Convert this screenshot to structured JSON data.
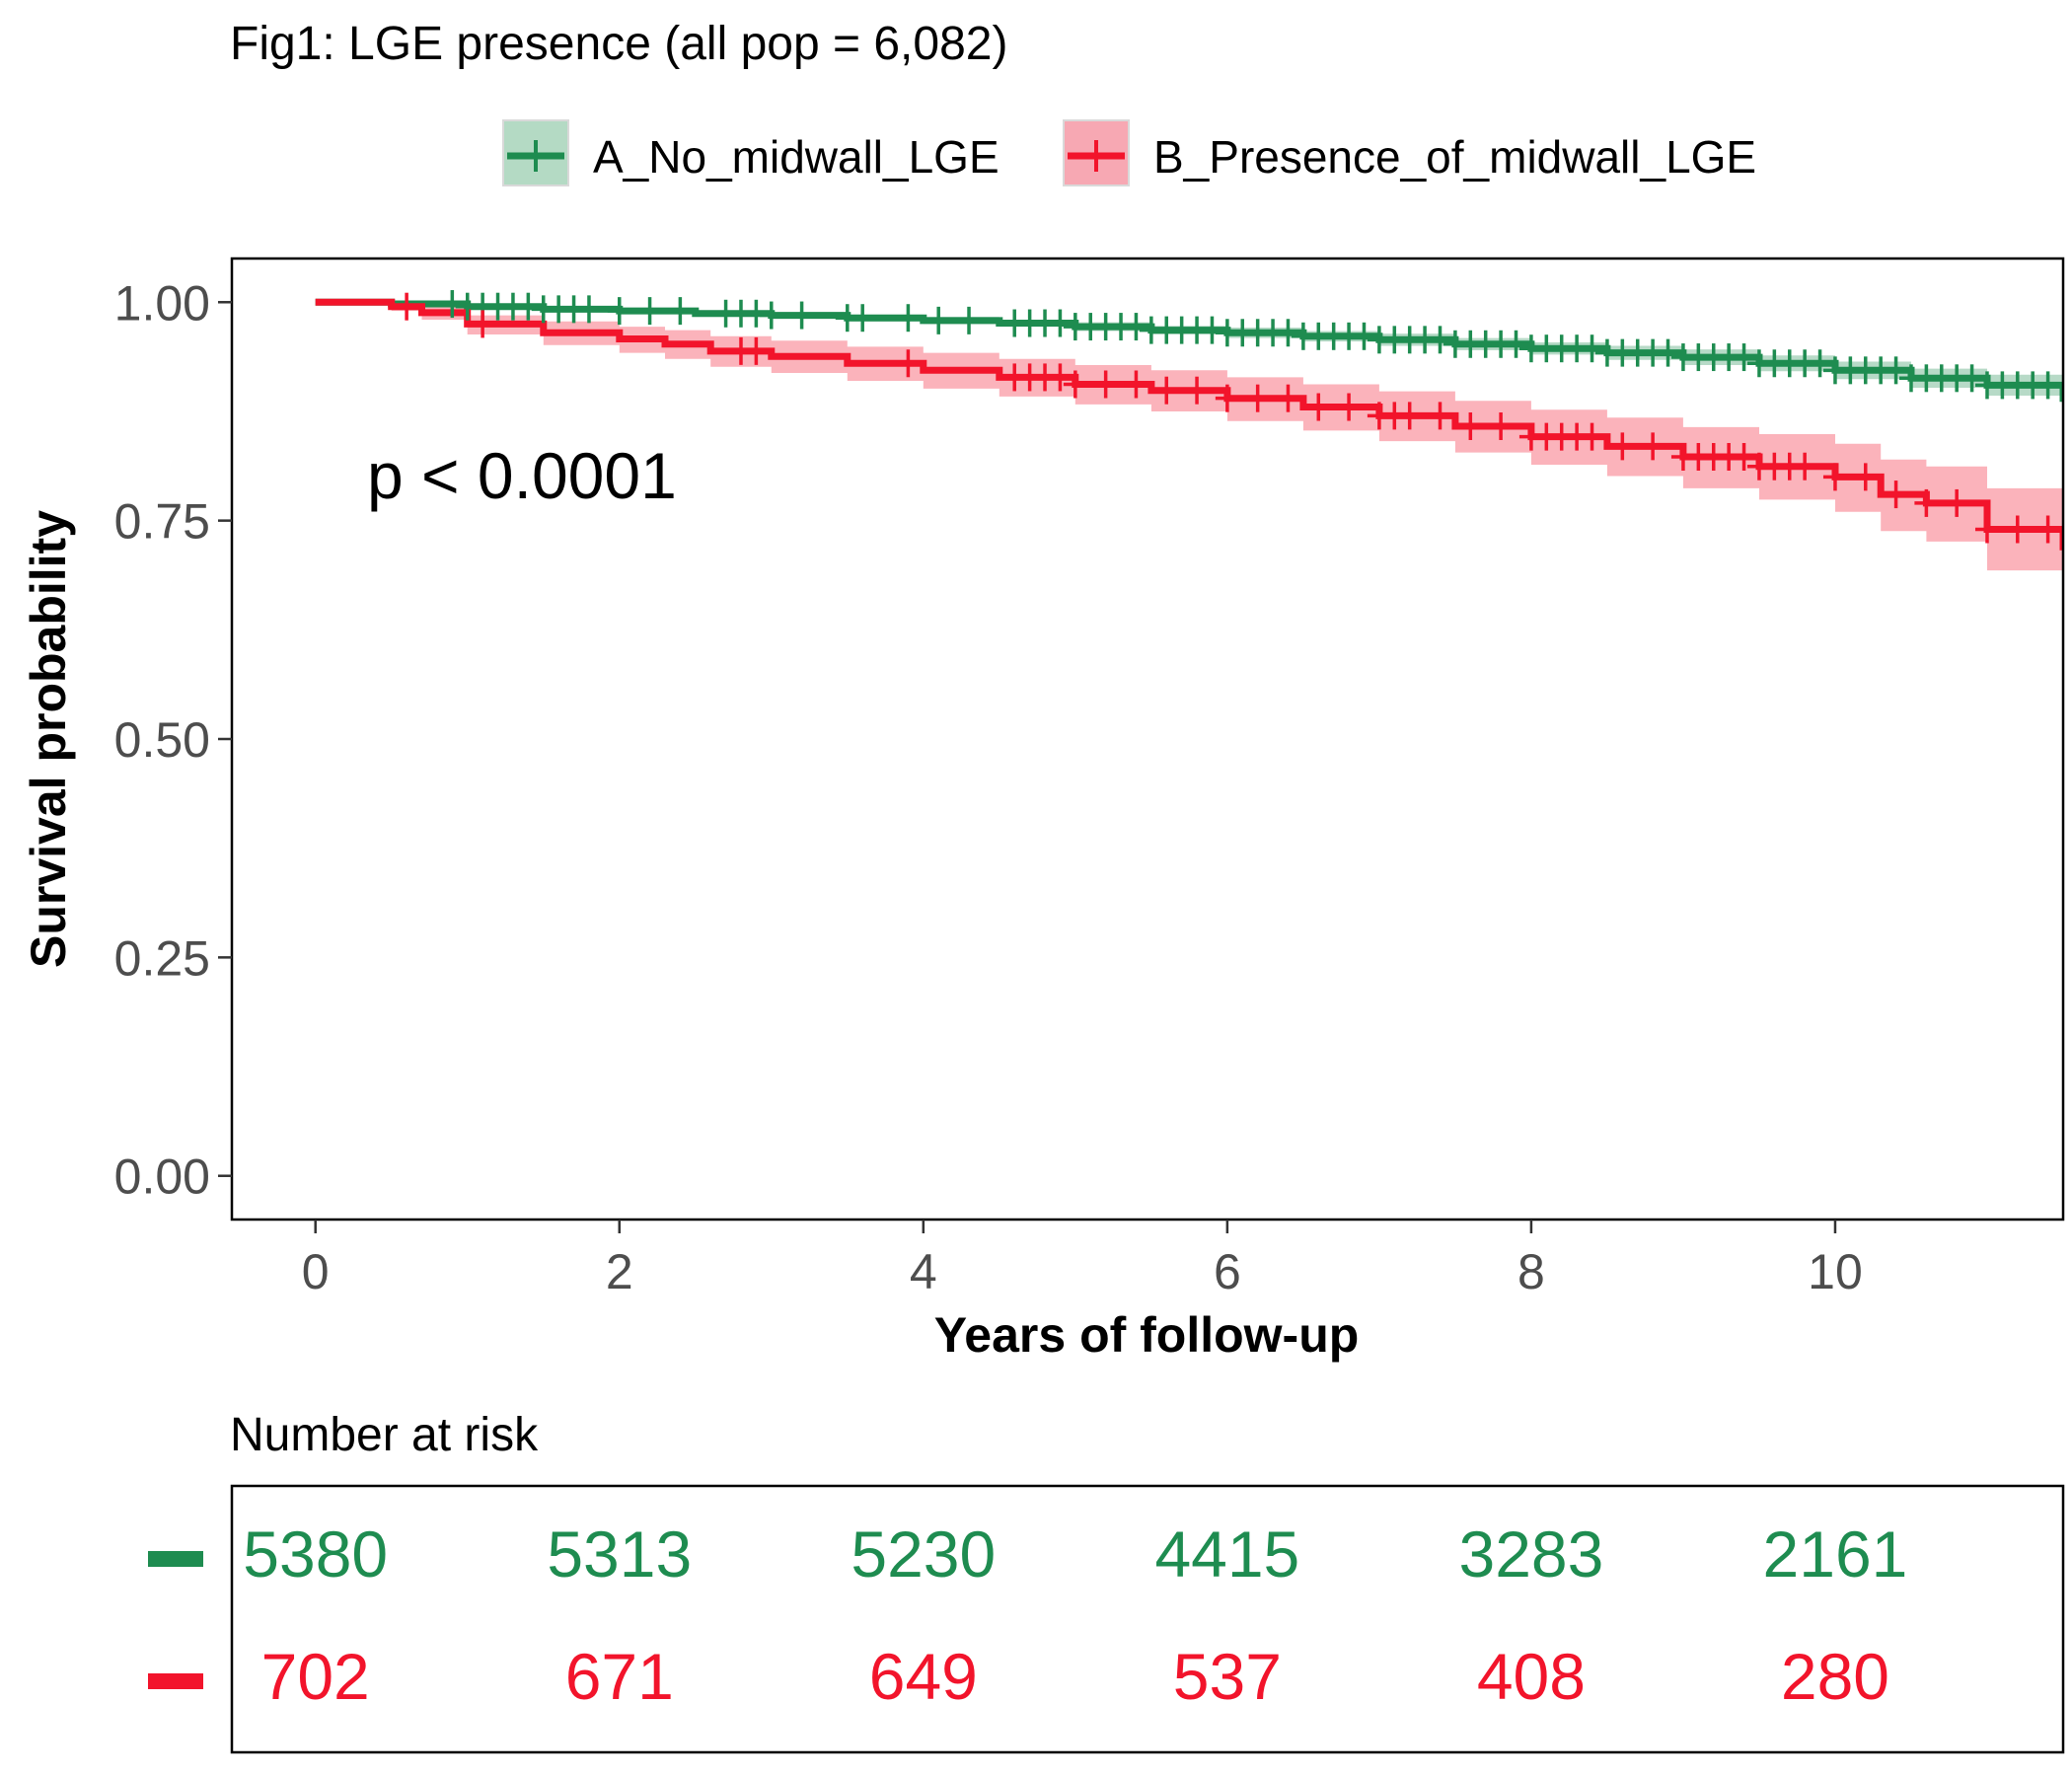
{
  "chart_data": {
    "type": "line",
    "title": "Fig1: LGE presence (all pop = 6,082)",
    "xlabel": "Years of follow-up",
    "ylabel": "Survival probability",
    "xlim": [
      -0.55,
      11.5
    ],
    "ylim": [
      -0.05,
      1.05
    ],
    "x_ticks": [
      0,
      2,
      4,
      6,
      8,
      10
    ],
    "y_ticks": [
      0.0,
      0.25,
      0.5,
      0.75,
      1.0
    ],
    "y_tick_labels": [
      "0.00",
      "0.25",
      "0.50",
      "0.75",
      "1.00"
    ],
    "grid": false,
    "legend_position": "top",
    "annotation": "p < 0.0001",
    "series": [
      {
        "name": "A_No_midwall_LGE",
        "color": "#1e8c50",
        "x": [
          0,
          0.5,
          1,
          1.5,
          2,
          2.5,
          3,
          3.5,
          4,
          4.5,
          5,
          5.5,
          6,
          6.5,
          7,
          7.5,
          8,
          8.5,
          9,
          9.5,
          10,
          10.5,
          11,
          11.5
        ],
        "y": [
          1.0,
          0.998,
          0.995,
          0.992,
          0.99,
          0.987,
          0.985,
          0.982,
          0.979,
          0.976,
          0.972,
          0.968,
          0.965,
          0.961,
          0.957,
          0.952,
          0.947,
          0.942,
          0.937,
          0.93,
          0.922,
          0.913,
          0.905,
          0.89
        ],
        "ci_lower": [
          1.0,
          0.996,
          0.993,
          0.99,
          0.987,
          0.984,
          0.982,
          0.978,
          0.975,
          0.972,
          0.967,
          0.963,
          0.959,
          0.955,
          0.95,
          0.945,
          0.94,
          0.934,
          0.928,
          0.921,
          0.912,
          0.902,
          0.893,
          0.877
        ],
        "ci_upper": [
          1.0,
          1.0,
          0.997,
          0.995,
          0.993,
          0.99,
          0.988,
          0.986,
          0.983,
          0.98,
          0.977,
          0.973,
          0.971,
          0.967,
          0.964,
          0.959,
          0.954,
          0.95,
          0.946,
          0.939,
          0.932,
          0.924,
          0.917,
          0.903
        ],
        "censor_x": [
          0.9,
          1.0,
          1.1,
          1.2,
          1.3,
          1.4,
          1.5,
          1.6,
          1.7,
          1.8,
          2.0,
          2.2,
          2.4,
          2.7,
          2.8,
          2.9,
          3.0,
          3.2,
          3.5,
          3.6,
          3.9,
          4.1,
          4.3,
          4.6,
          4.7,
          4.8,
          4.9,
          5.0,
          5.1,
          5.2,
          5.3,
          5.4,
          5.5,
          5.6,
          5.7,
          5.8,
          5.9,
          6.0,
          6.1,
          6.2,
          6.3,
          6.4,
          6.5,
          6.6,
          6.7,
          6.8,
          6.9,
          7.0,
          7.1,
          7.2,
          7.3,
          7.4,
          7.5,
          7.6,
          7.7,
          7.8,
          7.9,
          8.0,
          8.1,
          8.2,
          8.3,
          8.4,
          8.5,
          8.6,
          8.7,
          8.8,
          8.9,
          9.0,
          9.1,
          9.2,
          9.3,
          9.4,
          9.5,
          9.6,
          9.7,
          9.8,
          9.9,
          10.0,
          10.1,
          10.2,
          10.3,
          10.4,
          10.5,
          10.6,
          10.7,
          10.8,
          10.9,
          11.0,
          11.1,
          11.2,
          11.3,
          11.4
        ]
      },
      {
        "name": "B_Presence_of_midwall_LGE",
        "color": "#f2142b",
        "x": [
          0,
          0.5,
          0.7,
          1.0,
          1.5,
          2.0,
          2.3,
          2.6,
          3.0,
          3.5,
          4.0,
          4.5,
          5.0,
          5.5,
          6.0,
          6.5,
          7.0,
          7.5,
          8.0,
          8.5,
          9.0,
          9.5,
          10.0,
          10.3,
          10.6,
          11.0,
          11.5
        ],
        "y": [
          1.0,
          0.995,
          0.988,
          0.975,
          0.965,
          0.958,
          0.952,
          0.944,
          0.938,
          0.93,
          0.922,
          0.914,
          0.906,
          0.899,
          0.89,
          0.88,
          0.87,
          0.858,
          0.846,
          0.835,
          0.823,
          0.812,
          0.8,
          0.78,
          0.77,
          0.74,
          0.72
        ],
        "ci_lower": [
          1.0,
          0.99,
          0.98,
          0.963,
          0.951,
          0.942,
          0.935,
          0.926,
          0.919,
          0.91,
          0.901,
          0.892,
          0.883,
          0.875,
          0.864,
          0.853,
          0.841,
          0.828,
          0.814,
          0.801,
          0.787,
          0.774,
          0.76,
          0.738,
          0.726,
          0.693,
          0.67
        ],
        "ci_upper": [
          1.0,
          1.0,
          0.995,
          0.985,
          0.978,
          0.972,
          0.968,
          0.961,
          0.956,
          0.949,
          0.942,
          0.935,
          0.928,
          0.922,
          0.914,
          0.906,
          0.898,
          0.887,
          0.877,
          0.868,
          0.857,
          0.849,
          0.838,
          0.82,
          0.812,
          0.787,
          0.772
        ],
        "censor_x": [
          0.6,
          1.1,
          2.8,
          2.9,
          3.9,
          4.6,
          4.7,
          4.8,
          4.9,
          5.0,
          5.2,
          5.4,
          5.6,
          5.8,
          6.0,
          6.2,
          6.4,
          6.6,
          6.8,
          7.0,
          7.1,
          7.2,
          7.4,
          7.6,
          7.8,
          8.0,
          8.1,
          8.2,
          8.3,
          8.4,
          8.6,
          8.8,
          9.0,
          9.1,
          9.2,
          9.3,
          9.4,
          9.5,
          9.6,
          9.7,
          9.8,
          10.0,
          10.2,
          10.4,
          10.6,
          10.8,
          11.0,
          11.2,
          11.4
        ]
      }
    ],
    "risk_table": {
      "title": "Number at risk",
      "times": [
        0,
        2,
        4,
        6,
        8,
        10
      ],
      "rows": [
        {
          "name": "A_No_midwall_LGE",
          "color": "#1e8c50",
          "values": [
            "5380",
            "5313",
            "5230",
            "4415",
            "3283",
            "2161"
          ]
        },
        {
          "name": "B_Presence_of_midwall_LGE",
          "color": "#f2142b",
          "values": [
            "702",
            "671",
            "649",
            "537",
            "408",
            "280"
          ]
        }
      ]
    }
  }
}
